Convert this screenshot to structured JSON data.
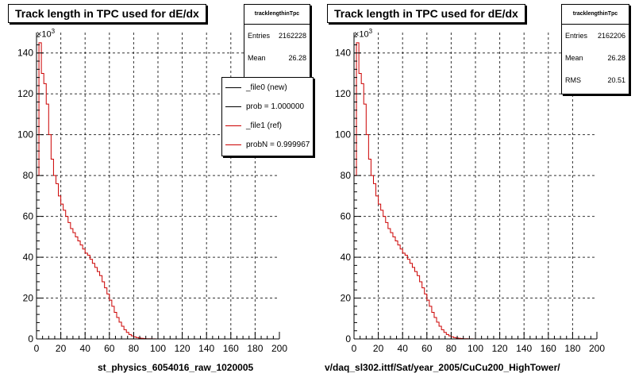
{
  "panels": [
    {
      "title": "Track length in TPC used for dE/dx",
      "stats": {
        "name": "tracklengthinTpc",
        "entries_label": "Entries",
        "entries": "2162228",
        "mean_label": "Mean",
        "mean": "26.28"
      },
      "scale": "×10",
      "scale_exp": "3",
      "xlabel": "st_physics_6054016_raw_1020005",
      "legend": [
        {
          "label": "_file0 (new)",
          "color": "#000000"
        },
        {
          "label": "prob = 1.000000",
          "color": "#000000"
        },
        {
          "label": "_file1 (ref)",
          "color": "#cc0000"
        },
        {
          "label": "probN = 0.999967",
          "color": "#cc0000"
        }
      ]
    },
    {
      "title": "Track length in TPC used for dE/dx",
      "stats": {
        "name": "tracklengthinTpc",
        "entries_label": "Entries",
        "entries": "2162206",
        "mean_label": "Mean",
        "mean": "26.28",
        "rms_label": "RMS",
        "rms": "20.51"
      },
      "scale": "×10",
      "scale_exp": "3",
      "xlabel": "v/daq_sl302.ittf/Sat/year_2005/CuCu200_HighTower/"
    }
  ],
  "chart_data": [
    {
      "type": "histogram",
      "title": "Track length in TPC used for dE/dx",
      "xlabel": "st_physics_6054016_raw_1020005",
      "xlim": [
        0,
        200
      ],
      "ylim": [
        0,
        150000
      ],
      "y_scale_label": "×10^3",
      "xticks": [
        0,
        20,
        40,
        60,
        80,
        100,
        120,
        140,
        160,
        180,
        200
      ],
      "yticks": [
        0,
        20,
        40,
        60,
        80,
        100,
        120,
        140
      ],
      "grid": true,
      "bin_width": 2,
      "series": [
        {
          "name": "_file1 (ref)",
          "color": "#cc0000",
          "x": [
            1,
            3,
            5,
            7,
            9,
            11,
            13,
            15,
            17,
            19,
            21,
            23,
            25,
            27,
            29,
            31,
            33,
            35,
            37,
            39,
            41,
            43,
            45,
            47,
            49,
            51,
            53,
            55,
            57,
            59,
            61,
            63,
            65,
            67,
            69,
            71,
            73,
            75,
            77,
            79,
            81,
            83,
            85,
            87,
            89,
            91,
            93,
            95,
            97,
            99,
            101,
            103,
            105
          ],
          "values": [
            80,
            145,
            130,
            125,
            115,
            100,
            88,
            80,
            76,
            70,
            66,
            63,
            60,
            57,
            54,
            52,
            50,
            48,
            46,
            44,
            42,
            41,
            39,
            37,
            35,
            33,
            31,
            28,
            25,
            22,
            19,
            16,
            13,
            10.5,
            8.2,
            6.2,
            4.5,
            3.2,
            2.2,
            1.5,
            1.0,
            0.7,
            0.45,
            0.3,
            0.2,
            0.12,
            0.08,
            0.05,
            0.03,
            0.02,
            0.01,
            0.005,
            0
          ]
        }
      ],
      "legend": [
        "_file0 (new)",
        "prob = 1.000000",
        "_file1 (ref)",
        "probN = 0.999967"
      ],
      "legend_position": "top-right"
    },
    {
      "type": "histogram",
      "title": "Track length in TPC used for dE/dx",
      "xlabel": "v/daq_sl302.ittf/Sat/year_2005/CuCu200_HighTower/",
      "xlim": [
        0,
        200
      ],
      "ylim": [
        0,
        150000
      ],
      "y_scale_label": "×10^3",
      "xticks": [
        0,
        20,
        40,
        60,
        80,
        100,
        120,
        140,
        160,
        180,
        200
      ],
      "yticks": [
        0,
        20,
        40,
        60,
        80,
        100,
        120,
        140
      ],
      "grid": true,
      "bin_width": 2,
      "series": [
        {
          "name": "",
          "color": "#cc0000",
          "x": [
            1,
            3,
            5,
            7,
            9,
            11,
            13,
            15,
            17,
            19,
            21,
            23,
            25,
            27,
            29,
            31,
            33,
            35,
            37,
            39,
            41,
            43,
            45,
            47,
            49,
            51,
            53,
            55,
            57,
            59,
            61,
            63,
            65,
            67,
            69,
            71,
            73,
            75,
            77,
            79,
            81,
            83,
            85,
            87,
            89,
            91,
            93,
            95,
            97,
            99,
            101,
            103,
            105
          ],
          "values": [
            80,
            145,
            130,
            125,
            115,
            100,
            88,
            80,
            76,
            70,
            66,
            63,
            60,
            57,
            54,
            52,
            50,
            48,
            46,
            44,
            42,
            41,
            39,
            37,
            35,
            33,
            31,
            28,
            25,
            22,
            19,
            16,
            13,
            10.5,
            8.2,
            6.2,
            4.5,
            3.2,
            2.2,
            1.5,
            1.0,
            0.7,
            0.45,
            0.3,
            0.2,
            0.12,
            0.08,
            0.05,
            0.03,
            0.02,
            0.01,
            0.005,
            0
          ]
        }
      ]
    }
  ]
}
